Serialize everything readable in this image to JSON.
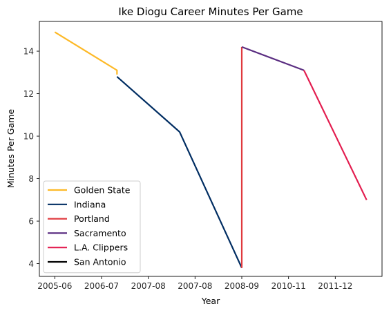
{
  "chart_data": {
    "type": "line",
    "title": "Ike Diogu Career Minutes Per Game",
    "xlabel": "Year",
    "ylabel": "Minutes Per Game",
    "x_ticks": [
      "2005-06",
      "2006-07",
      "2007-08",
      "2007-08",
      "2008-09",
      "2010-11",
      "2011-12"
    ],
    "y_ticks": [
      4,
      6,
      8,
      10,
      12,
      14
    ],
    "ylim": [
      3.4,
      15.4
    ],
    "grid": false,
    "legend_position": "bottom-left",
    "series": [
      {
        "name": "Golden State",
        "color": "#FDB927",
        "points": [
          {
            "x": 0,
            "y": 14.9
          },
          {
            "x": 1.33,
            "y": 13.1
          },
          {
            "x": 1.33,
            "y": 12.9
          }
        ]
      },
      {
        "name": "Indiana",
        "color": "#002D62",
        "points": [
          {
            "x": 1.33,
            "y": 12.8
          },
          {
            "x": 2.67,
            "y": 10.2
          },
          {
            "x": 4,
            "y": 3.8
          }
        ]
      },
      {
        "name": "Portland",
        "color": "#E03A3E",
        "points": [
          {
            "x": 4,
            "y": 3.8
          },
          {
            "x": 4,
            "y": 14.2
          }
        ]
      },
      {
        "name": "Sacramento",
        "color": "#5A2D81",
        "points": [
          {
            "x": 4,
            "y": 14.2
          },
          {
            "x": 5.33,
            "y": 13.1
          }
        ]
      },
      {
        "name": "L.A. Clippers",
        "color": "#E31D4F",
        "points": [
          {
            "x": 5.33,
            "y": 13.1
          },
          {
            "x": 6.67,
            "y": 7.0
          }
        ]
      },
      {
        "name": "San Antonio",
        "color": "#000000",
        "points": []
      }
    ]
  }
}
